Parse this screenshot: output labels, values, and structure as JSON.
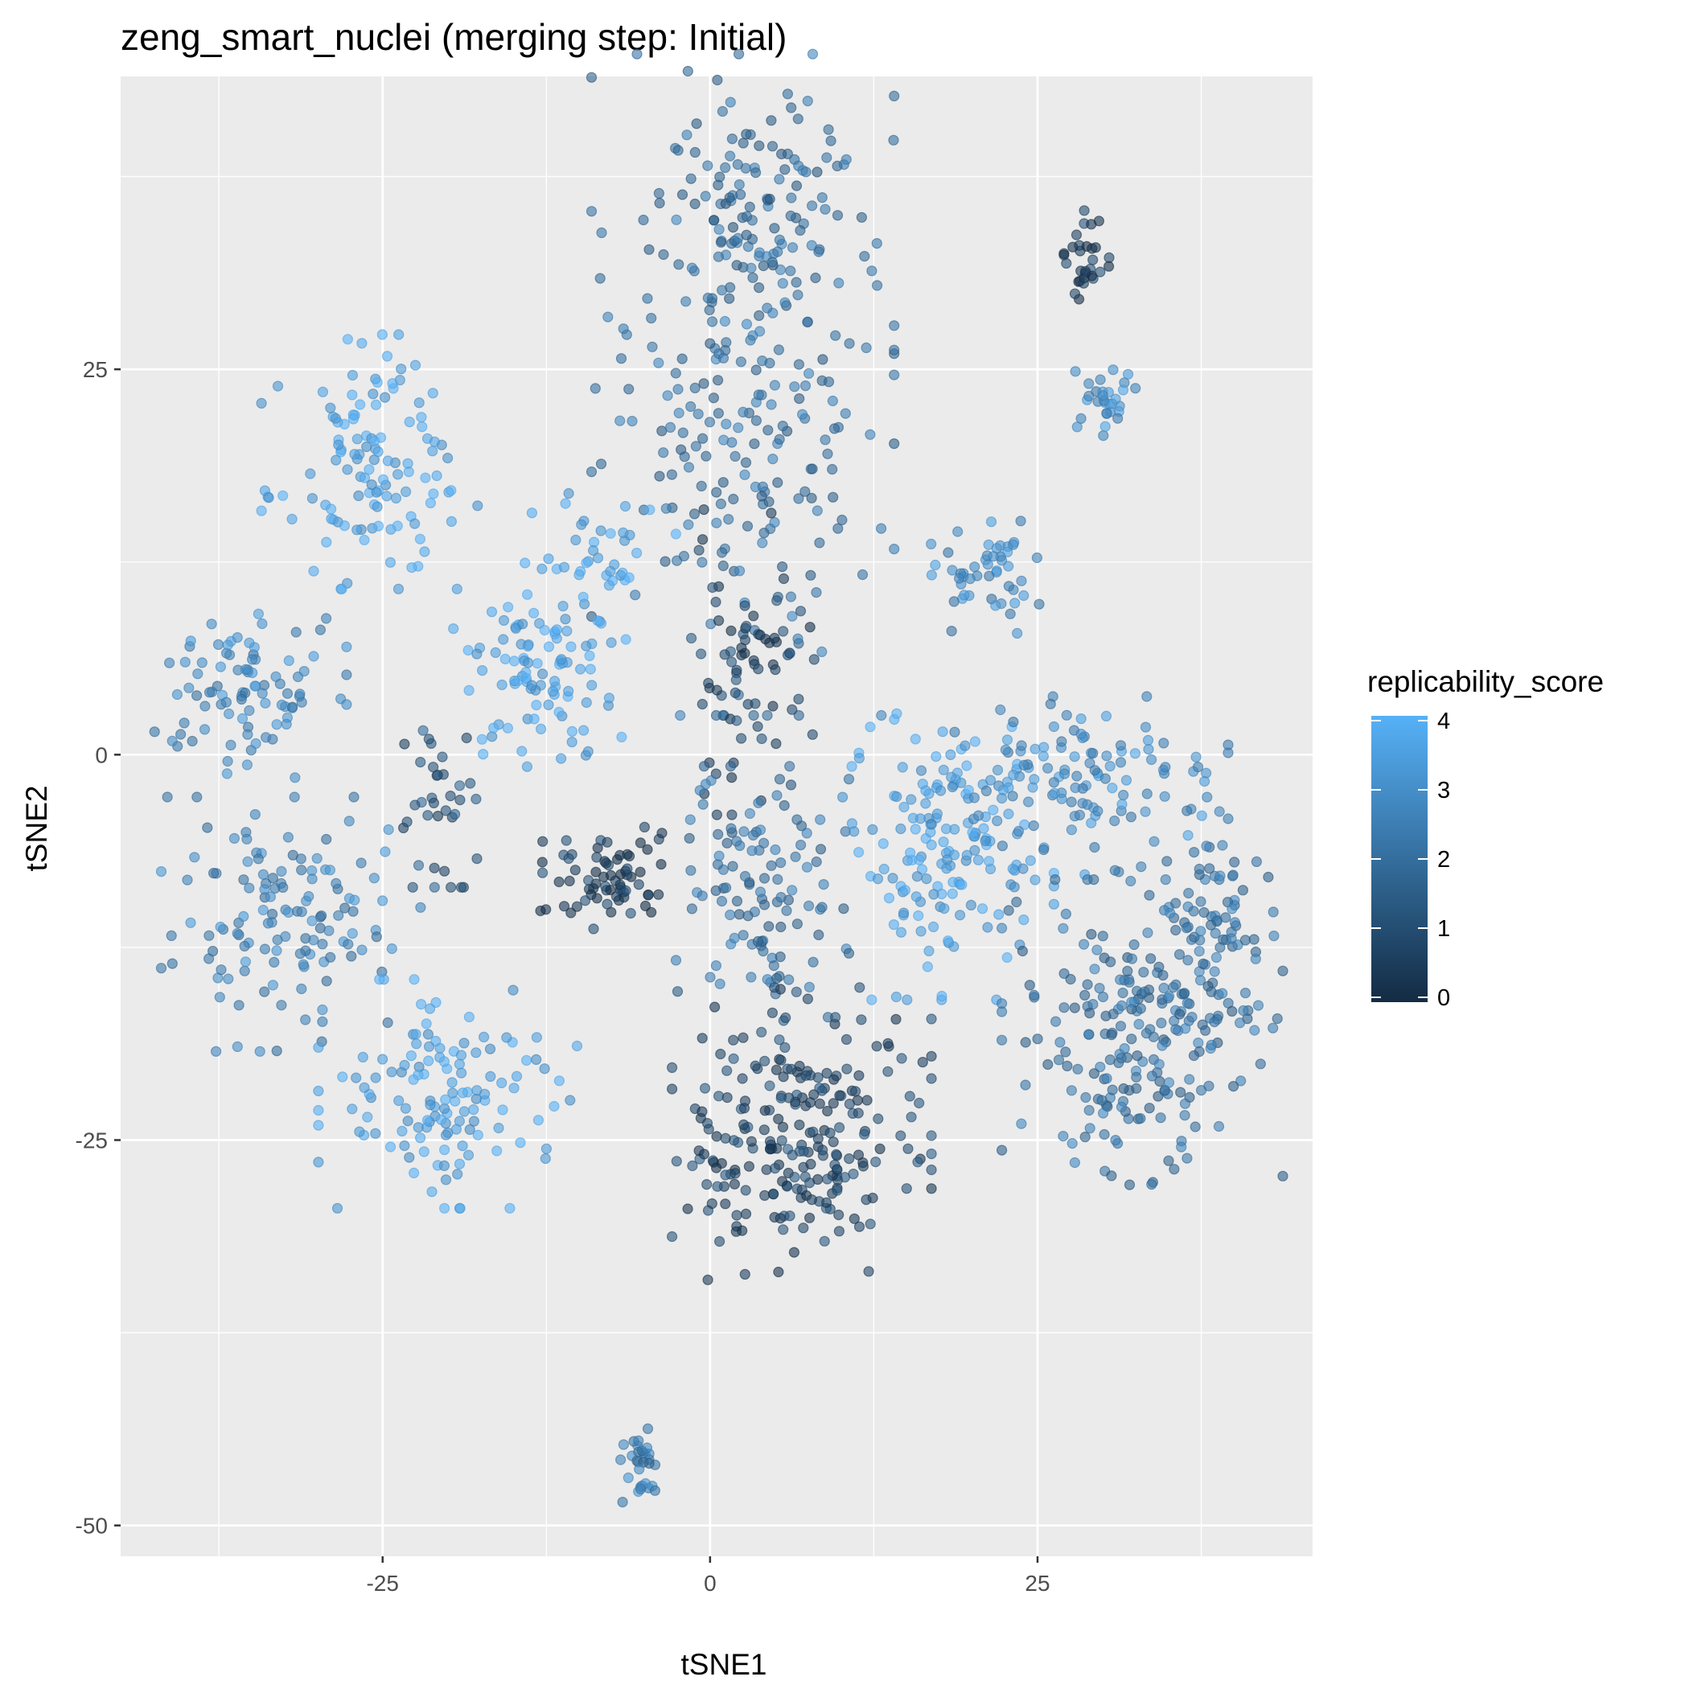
{
  "chart_data": {
    "type": "scatter",
    "title": "zeng_smart_nuclei (merging step: Initial)",
    "xlabel": "tSNE1",
    "ylabel": "tSNE2",
    "xlim": [
      -45,
      46
    ],
    "ylim": [
      -52,
      44
    ],
    "x_ticks": [
      -25,
      0,
      25
    ],
    "x_tick_labels": [
      "-25",
      "0",
      "25"
    ],
    "y_ticks": [
      25,
      0,
      -25,
      -50
    ],
    "y_tick_labels": [
      "25",
      "0",
      "-25",
      "-50"
    ],
    "grid": true,
    "legend": {
      "title": "replicability_score",
      "position": "right",
      "scale": "continuous",
      "range": [
        0,
        4
      ],
      "breaks": [
        4,
        3,
        2,
        1,
        0
      ],
      "break_labels": [
        "4",
        "3",
        "2",
        "1",
        "0"
      ],
      "low_color": "#132B43",
      "high_color": "#56B1F7"
    },
    "point_alpha": 0.6,
    "colors": {
      "panel_background": "#EBEBEB",
      "grid_major": "#FFFFFF",
      "low": "#132B43",
      "high": "#56B1F7"
    },
    "clusters": [
      {
        "cx": 2.5,
        "cy": 24,
        "sx": 7,
        "sy": 13,
        "score": 2.2,
        "n": 260
      },
      {
        "cx": 2.5,
        "cy": 36,
        "sx": 5.5,
        "sy": 4,
        "score": 2.0,
        "n": 70
      },
      {
        "cx": -26,
        "cy": 19,
        "sx": 5,
        "sy": 5,
        "score": 3.7,
        "n": 120
      },
      {
        "cx": -36,
        "cy": 4,
        "sx": 5,
        "sy": 3.5,
        "score": 2.8,
        "n": 90
      },
      {
        "cx": -21,
        "cy": -2,
        "sx": 2,
        "sy": 4,
        "score": 1.3,
        "n": 35
      },
      {
        "cx": -13,
        "cy": 5,
        "sx": 4,
        "sy": 3.5,
        "score": 3.7,
        "n": 90
      },
      {
        "cx": -9,
        "cy": 12,
        "sx": 4,
        "sy": 3,
        "score": 3.8,
        "n": 45
      },
      {
        "cx": 3,
        "cy": 6,
        "sx": 3,
        "sy": 6,
        "score": 0.8,
        "n": 70
      },
      {
        "cx": -32,
        "cy": -11,
        "sx": 6,
        "sy": 5,
        "score": 2.7,
        "n": 130
      },
      {
        "cx": -20,
        "cy": -22,
        "sx": 6,
        "sy": 4.5,
        "score": 3.6,
        "n": 130
      },
      {
        "cx": -8,
        "cy": -8,
        "sx": 3,
        "sy": 2,
        "score": 0.6,
        "n": 70
      },
      {
        "cx": 4,
        "cy": -9,
        "sx": 4,
        "sy": 5,
        "score": 2.2,
        "n": 110
      },
      {
        "cx": 7,
        "cy": -25,
        "sx": 6,
        "sy": 6,
        "score": 0.9,
        "n": 240
      },
      {
        "cx": 18,
        "cy": -6,
        "sx": 5,
        "sy": 6,
        "score": 3.6,
        "n": 150
      },
      {
        "cx": 28,
        "cy": -2,
        "sx": 7,
        "sy": 3.5,
        "score": 3.0,
        "n": 130
      },
      {
        "cx": 33,
        "cy": -18,
        "sx": 6.5,
        "sy": 6,
        "score": 2.2,
        "n": 230
      },
      {
        "cx": 39,
        "cy": -10,
        "sx": 2.5,
        "sy": 4,
        "score": 2.3,
        "n": 60
      },
      {
        "cx": 21,
        "cy": 12,
        "sx": 2.5,
        "sy": 2.5,
        "score": 2.9,
        "n": 50
      },
      {
        "cx": 30,
        "cy": 23,
        "sx": 1.5,
        "sy": 1.5,
        "score": 3.0,
        "n": 30
      },
      {
        "cx": 29,
        "cy": 32,
        "sx": 1.2,
        "sy": 2,
        "score": 0.6,
        "n": 30
      },
      {
        "cx": -5.5,
        "cy": -46,
        "sx": 0.9,
        "sy": 1.8,
        "score": 2.5,
        "n": 30
      }
    ]
  }
}
